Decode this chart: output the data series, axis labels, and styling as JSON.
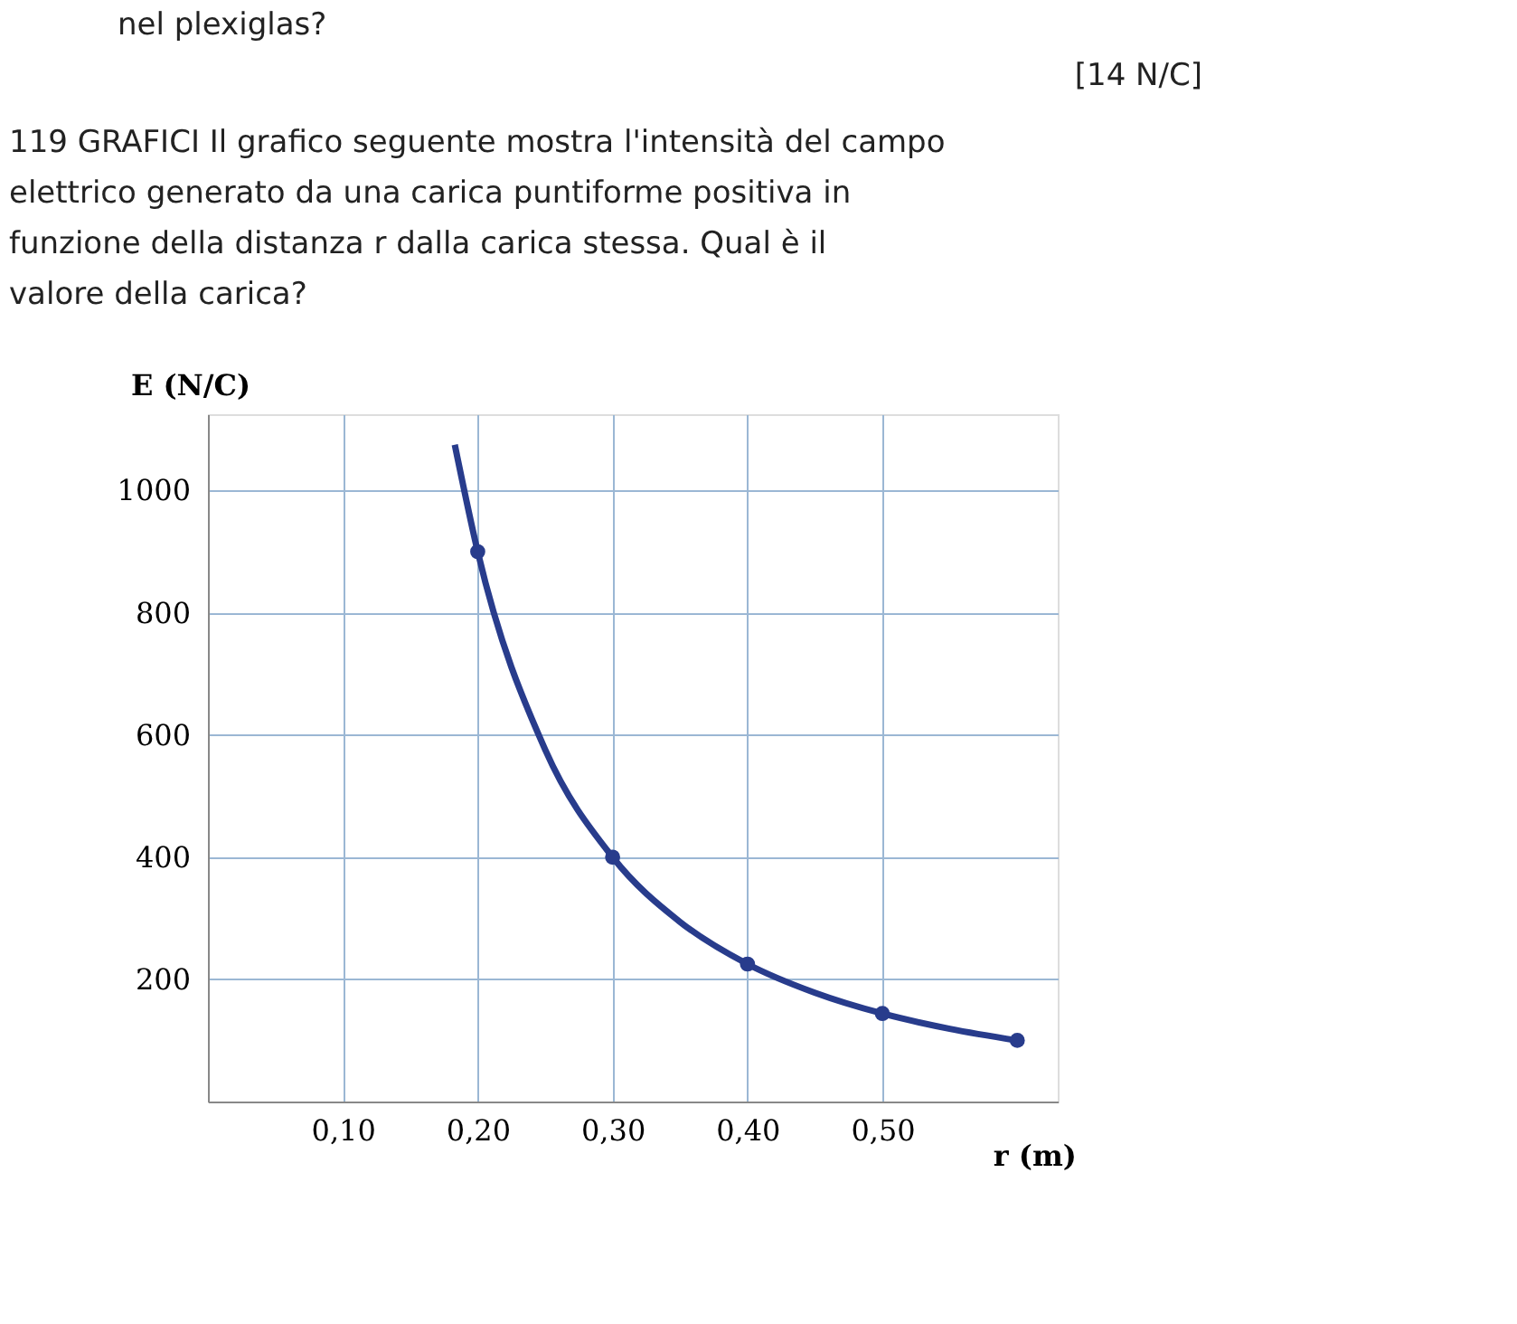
{
  "chart_data": {
    "type": "line",
    "title": "119 GRAFICI Il grafico seguente mostra l'intensità del campo elettrico generato da una carica puntiforme positiva in funzione della distanza r dalla carica stessa. Qual è il valore della carica?",
    "annotations": [
      "nel plexiglas?",
      "[14 N/C]"
    ],
    "xlabel": "r (m)",
    "ylabel": "E (N/C)",
    "xlim": [
      0,
      0.63
    ],
    "ylim": [
      0,
      1125
    ],
    "xticks": [
      {
        "value": 0.1,
        "label": "0,10"
      },
      {
        "value": 0.2,
        "label": "0,20"
      },
      {
        "value": 0.3,
        "label": "0,30"
      },
      {
        "value": 0.4,
        "label": "0,40"
      },
      {
        "value": 0.5,
        "label": "0,50"
      }
    ],
    "yticks": [
      200,
      400,
      600,
      800,
      1000
    ],
    "grid": true,
    "series": [
      {
        "color": "#283c8c",
        "marker": "none",
        "x": [
          0.183,
          0.2,
          0.25,
          0.3,
          0.35,
          0.4,
          0.45,
          0.5,
          0.55,
          0.6
        ],
        "values": [
          1075,
          900,
          576,
          400,
          294,
          225,
          178,
          144,
          119,
          100
        ]
      },
      {
        "type": "scatter",
        "color": "#283c8c",
        "marker": "circle",
        "x": [
          0.2,
          0.3,
          0.4,
          0.5,
          0.6
        ],
        "values": [
          900,
          400,
          225,
          144,
          100
        ]
      }
    ]
  }
}
